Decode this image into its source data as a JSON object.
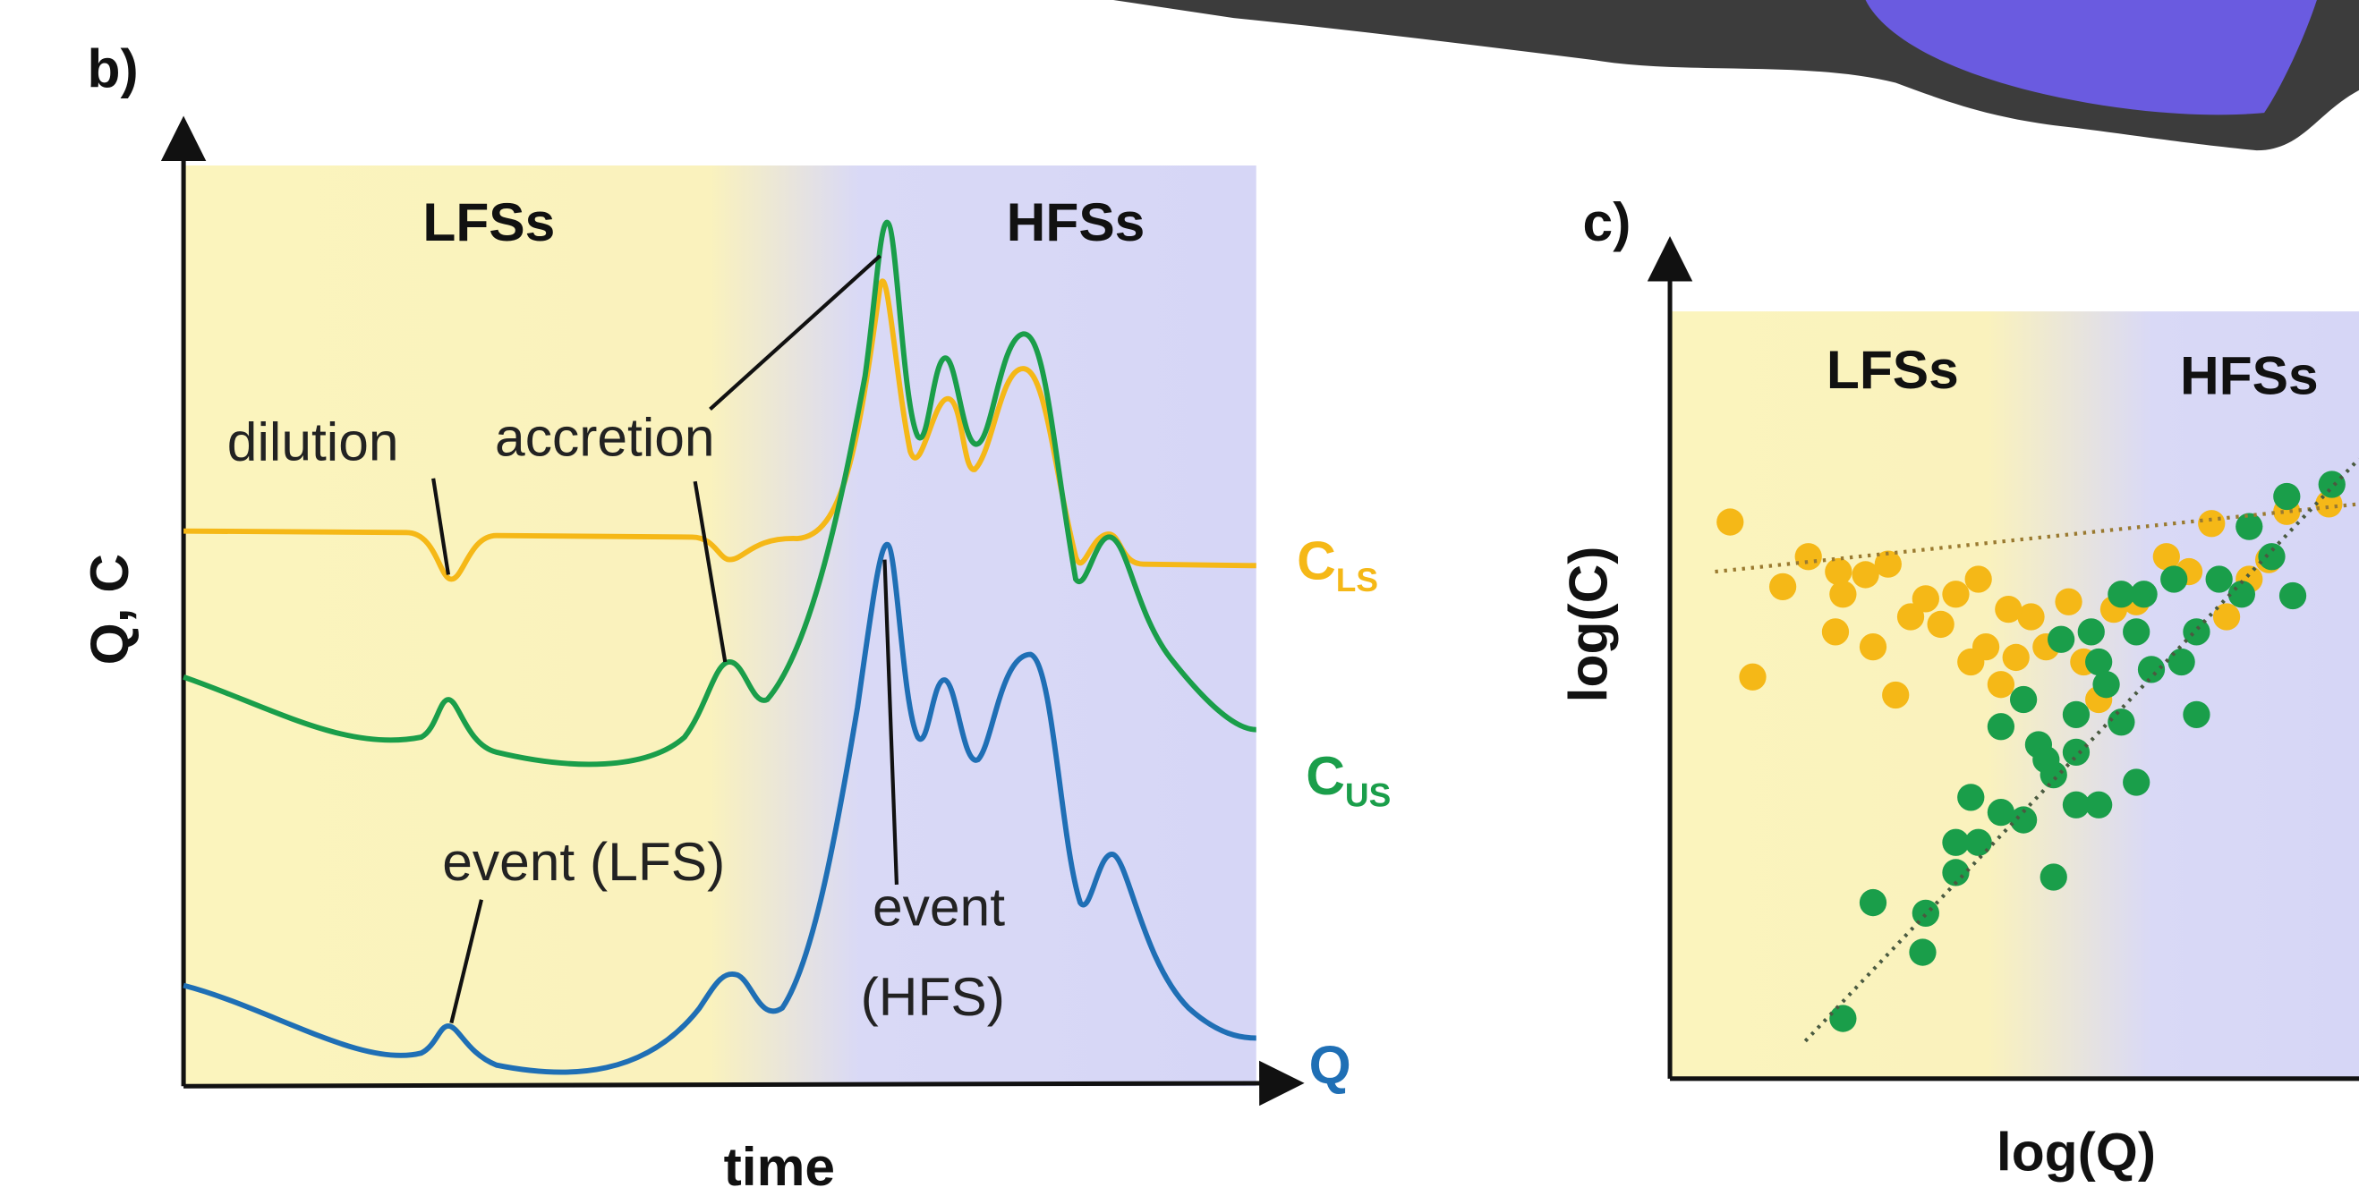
{
  "panel_b": {
    "label": "b)",
    "y_axis": "Q, C",
    "x_axis": "time",
    "regions": [
      "LFSs",
      "HFSs"
    ],
    "annotations": [
      "dilution",
      "accretion",
      "event (LFS)",
      [
        "event",
        "(HFS)"
      ]
    ],
    "series": {
      "c_ls": {
        "main": "C",
        "sub": "LS"
      },
      "c_us": {
        "main": "C",
        "sub": "US"
      },
      "q": "Q"
    }
  },
  "panel_c": {
    "label": "c)",
    "y_axis": "log(C)",
    "x_axis": "log(Q)",
    "regions": [
      "LFSs",
      "HFSs"
    ]
  }
}
